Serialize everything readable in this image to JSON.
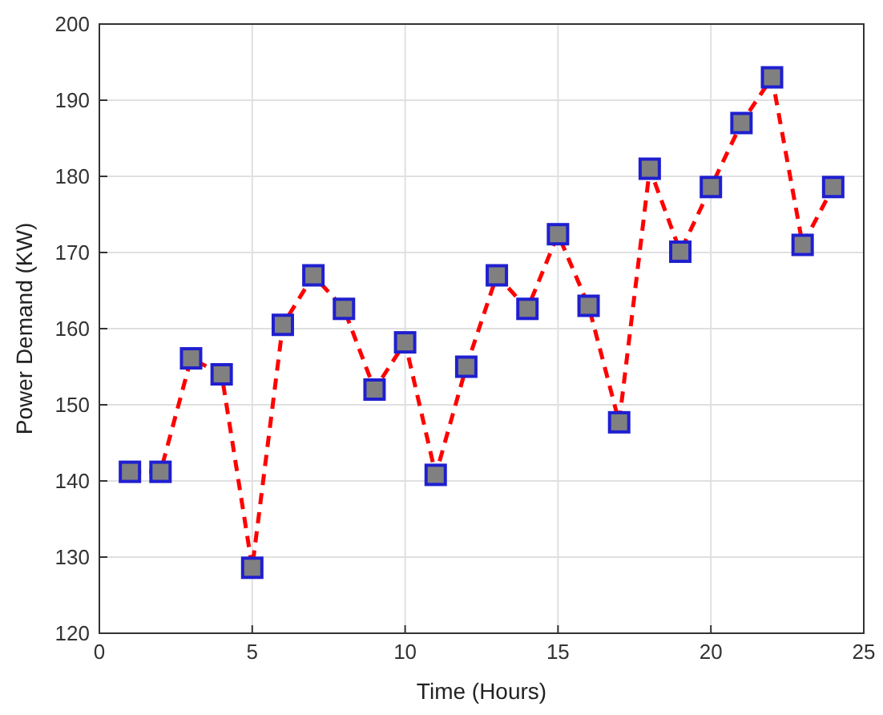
{
  "chart_data": {
    "type": "line",
    "xlabel": "Time (Hours)",
    "ylabel": "Power Demand (KW)",
    "x": [
      1,
      2,
      3,
      4,
      5,
      6,
      7,
      8,
      9,
      10,
      11,
      12,
      13,
      14,
      15,
      16,
      17,
      18,
      19,
      20,
      21,
      22,
      23,
      24
    ],
    "series": [
      {
        "color": "#ff0000",
        "values": [
          141.2,
          141.2,
          156.1,
          154,
          128.6,
          160.5,
          167,
          162.6,
          152,
          158.2,
          140.8,
          155,
          167,
          162.6,
          172.4,
          163,
          147.7,
          181,
          170.1,
          178.6,
          187,
          193,
          171,
          178.6
        ]
      }
    ],
    "xlim": [
      0,
      25
    ],
    "xticks": [
      0,
      5,
      10,
      15,
      20,
      25
    ],
    "ylim": [
      120,
      200
    ],
    "yticks": [
      120,
      130,
      140,
      150,
      160,
      170,
      180,
      190,
      200
    ],
    "grid": true,
    "marker": "square",
    "line_style": "dashed"
  }
}
